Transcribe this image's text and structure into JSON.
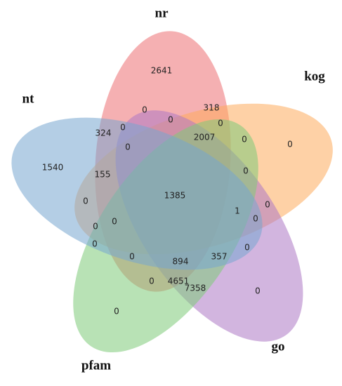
{
  "chart_data": {
    "type": "venn",
    "sets": [
      {
        "name": "nr",
        "color": "#ec6f72"
      },
      {
        "name": "kog",
        "color": "#fdac5c"
      },
      {
        "name": "go",
        "color": "#ad78c4"
      },
      {
        "name": "pfam",
        "color": "#7dcb78"
      },
      {
        "name": "nt",
        "color": "#77a6cf"
      }
    ],
    "regions": [
      2641,
      318,
      0,
      0,
      0,
      324,
      0,
      2007,
      0,
      0,
      0,
      1540,
      155,
      0,
      1385,
      0,
      1,
      0,
      0,
      0,
      0,
      0,
      0,
      894,
      357,
      0,
      0,
      4651,
      7358,
      0,
      0
    ]
  }
}
